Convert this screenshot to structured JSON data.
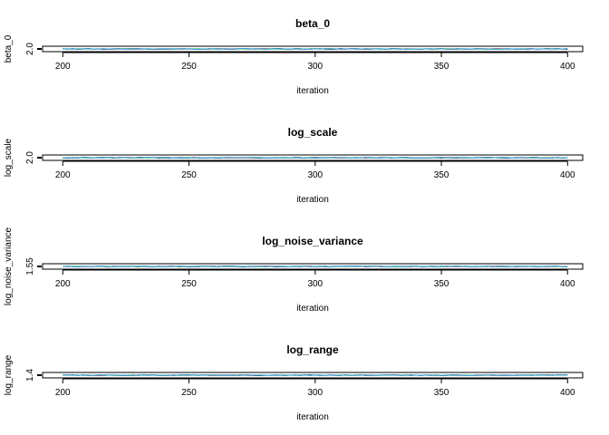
{
  "chart_data": [
    {
      "type": "line",
      "title": "beta_0",
      "xlabel": "iteration",
      "ylabel": "beta_0",
      "xlim": [
        192,
        406
      ],
      "ylim": [
        1.9,
        2.1
      ],
      "x_ticks": [
        "200",
        "250",
        "300",
        "350",
        "400"
      ],
      "y_ticks": [
        "2.0"
      ],
      "y_tick_values": [
        2.0
      ],
      "x_range": [
        200,
        400
      ],
      "series": [
        {
          "color": "#000000",
          "y_mean": 2.0,
          "y_spread": 0.012
        },
        {
          "color": "#DF536B",
          "y_mean": 2.0,
          "y_spread": 0.012
        },
        {
          "color": "#61D04F",
          "y_mean": 2.0,
          "y_spread": 0.012
        },
        {
          "color": "#2297E6",
          "y_mean": 2.0,
          "y_spread": 0.012
        }
      ]
    },
    {
      "type": "line",
      "title": "log_scale",
      "xlabel": "iteration",
      "ylabel": "log_scale",
      "xlim": [
        192,
        406
      ],
      "ylim": [
        1.9,
        2.1
      ],
      "x_ticks": [
        "200",
        "250",
        "300",
        "350",
        "400"
      ],
      "y_ticks": [
        "2.0"
      ],
      "y_tick_values": [
        2.0
      ],
      "x_range": [
        200,
        400
      ],
      "series": [
        {
          "color": "#000000",
          "y_mean": 2.0,
          "y_spread": 0.012
        },
        {
          "color": "#DF536B",
          "y_mean": 2.0,
          "y_spread": 0.012
        },
        {
          "color": "#61D04F",
          "y_mean": 2.0,
          "y_spread": 0.012
        },
        {
          "color": "#2297E6",
          "y_mean": 2.0,
          "y_spread": 0.012
        }
      ]
    },
    {
      "type": "line",
      "title": "log_noise_variance",
      "xlabel": "iteration",
      "ylabel": "log_noise_variance",
      "xlim": [
        192,
        406
      ],
      "ylim": [
        1.45,
        1.65
      ],
      "x_ticks": [
        "200",
        "250",
        "300",
        "350",
        "400"
      ],
      "y_ticks": [
        "1.55"
      ],
      "y_tick_values": [
        1.55
      ],
      "x_range": [
        200,
        400
      ],
      "series": [
        {
          "color": "#000000",
          "y_mean": 1.55,
          "y_spread": 0.012
        },
        {
          "color": "#DF536B",
          "y_mean": 1.55,
          "y_spread": 0.012
        },
        {
          "color": "#61D04F",
          "y_mean": 1.55,
          "y_spread": 0.012
        },
        {
          "color": "#2297E6",
          "y_mean": 1.55,
          "y_spread": 0.012
        }
      ]
    },
    {
      "type": "line",
      "title": "log_range",
      "xlabel": "iteration",
      "ylabel": "log_range",
      "xlim": [
        192,
        406
      ],
      "ylim": [
        1.3,
        1.5
      ],
      "x_ticks": [
        "200",
        "250",
        "300",
        "350",
        "400"
      ],
      "y_ticks": [
        "1.4"
      ],
      "y_tick_values": [
        1.4
      ],
      "x_range": [
        200,
        400
      ],
      "series": [
        {
          "color": "#000000",
          "y_mean": 1.4,
          "y_spread": 0.012
        },
        {
          "color": "#DF536B",
          "y_mean": 1.4,
          "y_spread": 0.012
        },
        {
          "color": "#61D04F",
          "y_mean": 1.4,
          "y_spread": 0.012
        },
        {
          "color": "#2297E6",
          "y_mean": 1.4,
          "y_spread": 0.012
        }
      ]
    }
  ]
}
